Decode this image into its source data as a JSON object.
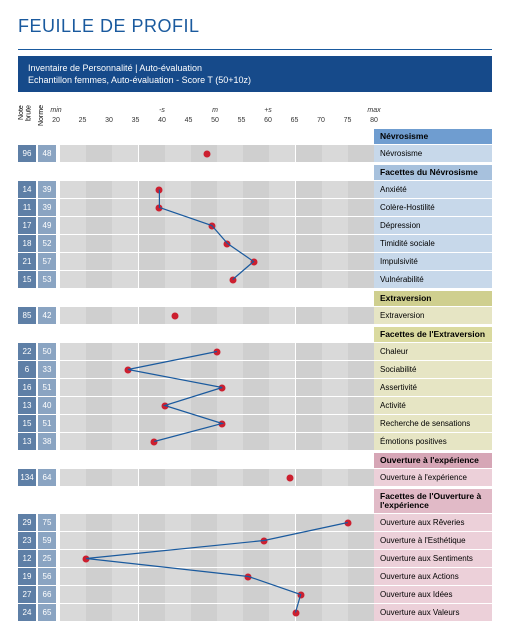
{
  "title": "FEUILLE DE PROFIL",
  "title_color": "#1a5a9e",
  "rule_color": "#1a5a9e",
  "banner": {
    "bg": "#164a8a",
    "line1": "Inventaire de Personnalité | Auto-évaluation",
    "line2": "Echantillon femmes, Auto-évaluation - Score T (50+10z)"
  },
  "columns": {
    "raw_label": "Note brute",
    "norm_label": "Norme",
    "raw_bg": "#5e7fa6",
    "norm_bg": "#8aa4c2"
  },
  "axis": {
    "min": 20,
    "max": 80,
    "ticks": [
      20,
      25,
      30,
      35,
      40,
      45,
      50,
      55,
      60,
      65,
      70,
      75,
      80
    ],
    "min_label": "min",
    "max_label": "max",
    "mean_label": "m",
    "minus_s": "-s",
    "plus_s": "+s",
    "mean": 50,
    "minus_s_at": 40,
    "plus_s_at": 60
  },
  "plot": {
    "stripe_colors": [
      "#d9d9d9",
      "#cfcfcf"
    ],
    "dot_color": "#cc1f2f",
    "line_color": "#1a5a9e",
    "line_width": 1.2
  },
  "section_colors": {
    "blue": {
      "header": "#6f9dd0",
      "row_name": "#c7d8ea",
      "facet_header": "#a7c1dd"
    },
    "olive": {
      "header": "#cfcf8f",
      "row_name": "#e6e5c4",
      "facet_header": "#dada9f"
    },
    "rose": {
      "header": "#d6a6b6",
      "row_name": "#ecd0d9",
      "facet_header": "#e1bac7"
    }
  },
  "sections": [
    {
      "color": "blue",
      "main_title": "Névrosisme",
      "main": {
        "raw": 96,
        "norm": 48,
        "t": 48,
        "name": "Névrosisme"
      },
      "facet_title": "Facettes du Névrosisme",
      "facets": [
        {
          "raw": 14,
          "norm": 39,
          "t": 39,
          "name": "Anxiété"
        },
        {
          "raw": 11,
          "norm": 39,
          "t": 39,
          "name": "Colère-Hostilité"
        },
        {
          "raw": 17,
          "norm": 49,
          "t": 49,
          "name": "Dépression"
        },
        {
          "raw": 18,
          "norm": 52,
          "t": 52,
          "name": "Timidité sociale"
        },
        {
          "raw": 21,
          "norm": 57,
          "t": 57,
          "name": "Impulsivité"
        },
        {
          "raw": 15,
          "norm": 53,
          "t": 53,
          "name": "Vulnérabilité"
        }
      ]
    },
    {
      "color": "olive",
      "main_title": "Extraversion",
      "main": {
        "raw": 85,
        "norm": 42,
        "t": 42,
        "name": "Extraversion"
      },
      "facet_title": "Facettes de l'Extraversion",
      "facets": [
        {
          "raw": 22,
          "norm": 50,
          "t": 50,
          "name": "Chaleur"
        },
        {
          "raw": 6,
          "norm": 33,
          "t": 33,
          "name": "Sociabilité"
        },
        {
          "raw": 16,
          "norm": 51,
          "t": 51,
          "name": "Assertivité"
        },
        {
          "raw": 13,
          "norm": 40,
          "t": 40,
          "name": "Activité"
        },
        {
          "raw": 15,
          "norm": 51,
          "t": 51,
          "name": "Recherche de sensations"
        },
        {
          "raw": 13,
          "norm": 38,
          "t": 38,
          "name": "Émotions positives"
        }
      ]
    },
    {
      "color": "rose",
      "main_title": "Ouverture à l'expérience",
      "main": {
        "raw": 134,
        "norm": 64,
        "t": 64,
        "name": "Ouverture à l'expérience"
      },
      "facet_title": "Facettes de l'Ouverture à l'expérience",
      "facet_title_tall": true,
      "facets": [
        {
          "raw": 29,
          "norm": 75,
          "t": 75,
          "name": "Ouverture aux Rêveries"
        },
        {
          "raw": 23,
          "norm": 59,
          "t": 59,
          "name": "Ouverture à l'Esthétique"
        },
        {
          "raw": 12,
          "norm": 25,
          "t": 25,
          "name": "Ouverture aux Sentiments"
        },
        {
          "raw": 19,
          "norm": 56,
          "t": 56,
          "name": "Ouverture aux Actions"
        },
        {
          "raw": 27,
          "norm": 66,
          "t": 66,
          "name": "Ouverture aux Idées"
        },
        {
          "raw": 24,
          "norm": 65,
          "t": 65,
          "name": "Ouverture aux Valeurs"
        }
      ]
    }
  ]
}
